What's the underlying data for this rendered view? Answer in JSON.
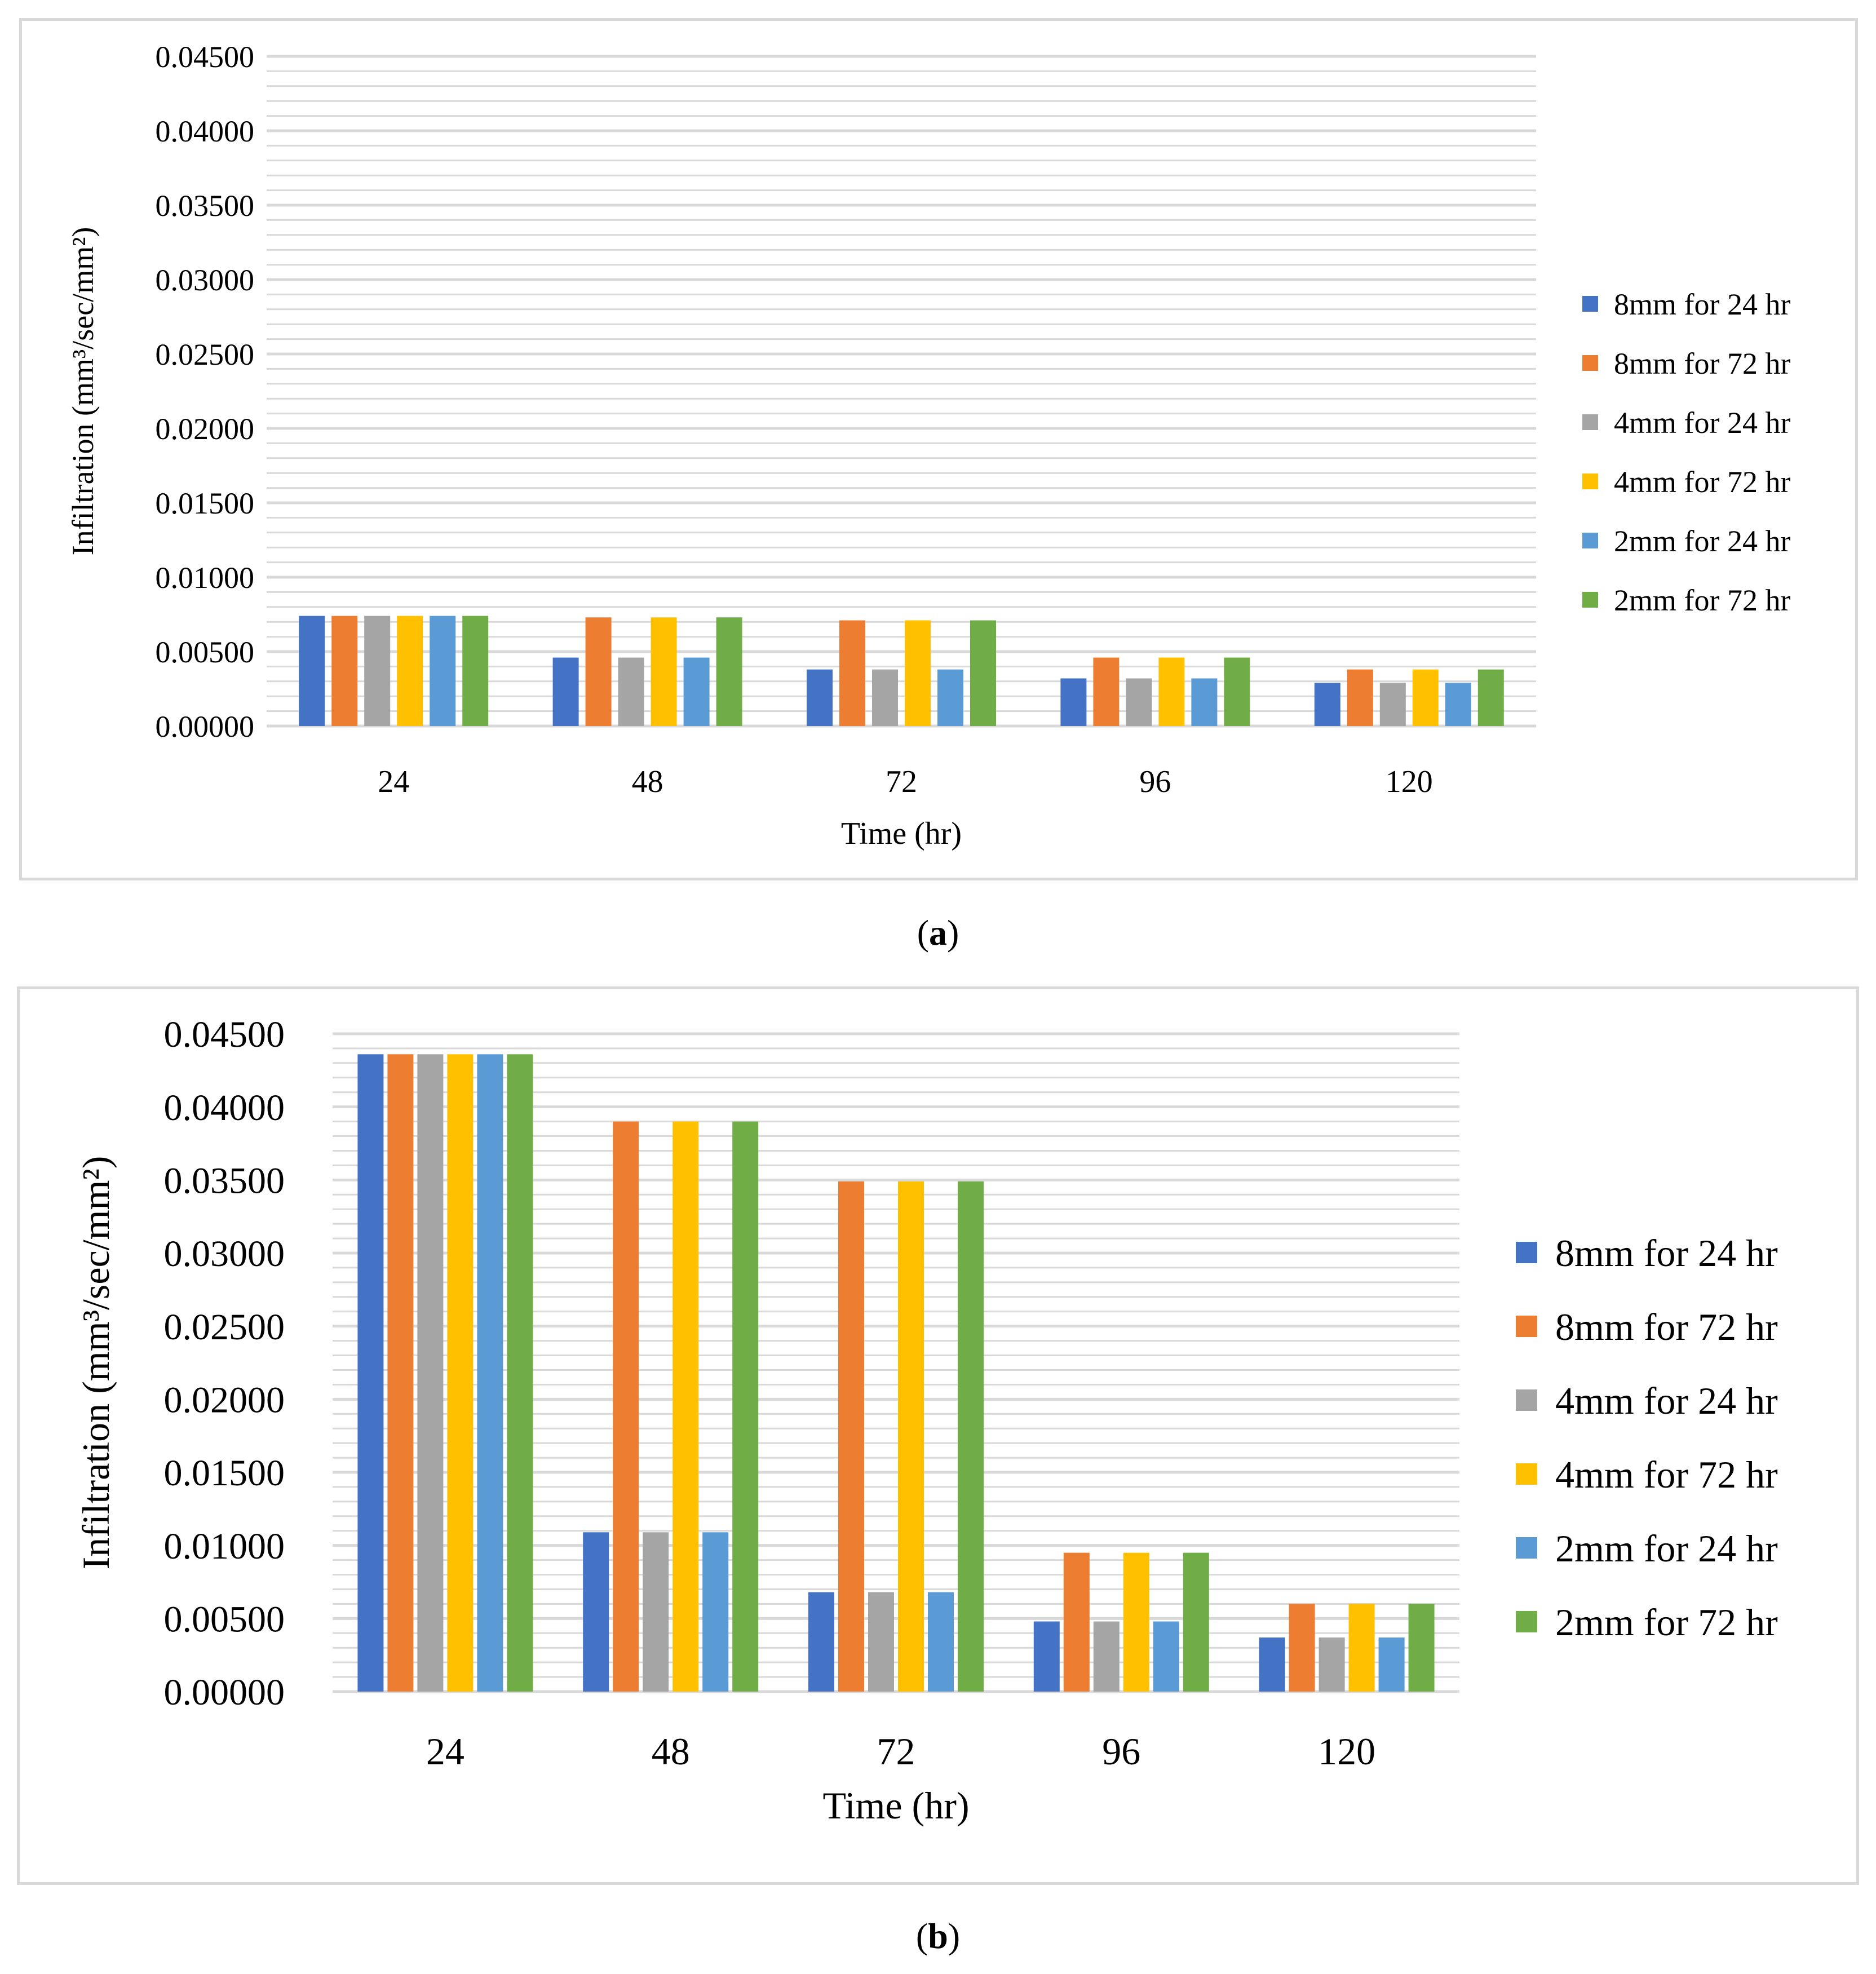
{
  "colors": {
    "background": "#ffffff",
    "panel_border": "#d9d9d9",
    "gridline": "#d9d9d9",
    "text": "#000000",
    "series": [
      "#4472c4",
      "#ed7d31",
      "#a5a5a5",
      "#ffc000",
      "#5b9bd5",
      "#70ad47"
    ]
  },
  "figure": {
    "caption_a_letter": "a",
    "caption_b_letter": "b",
    "caption_open": "(",
    "caption_close": ")"
  },
  "chart_data": [
    {
      "id": "a",
      "type": "bar",
      "xlabel": "Time (hr)",
      "ylabel": "Infiltration (mm³/sec/mm²)",
      "ylim": [
        0,
        0.045
      ],
      "y_ticks": [
        "0.00000",
        "0.00500",
        "0.01000",
        "0.01500",
        "0.02000",
        "0.02500",
        "0.03000",
        "0.03500",
        "0.04000",
        "0.04500"
      ],
      "y_tick_values": [
        0,
        0.005,
        0.01,
        0.015,
        0.02,
        0.025,
        0.03,
        0.035,
        0.04,
        0.045
      ],
      "minor_gridline_step": 0.001,
      "grid": true,
      "legend_position": "right",
      "categories": [
        "24",
        "48",
        "72",
        "96",
        "120"
      ],
      "series": [
        {
          "name": "8mm for 24 hr",
          "values": [
            0.0074,
            0.0046,
            0.0038,
            0.0032,
            0.0029
          ]
        },
        {
          "name": "8mm for 72 hr",
          "values": [
            0.0074,
            0.0073,
            0.0071,
            0.0046,
            0.0038
          ]
        },
        {
          "name": "4mm for 24 hr",
          "values": [
            0.0074,
            0.0046,
            0.0038,
            0.0032,
            0.0029
          ]
        },
        {
          "name": "4mm for 72 hr",
          "values": [
            0.0074,
            0.0073,
            0.0071,
            0.0046,
            0.0038
          ]
        },
        {
          "name": "2mm for 24 hr",
          "values": [
            0.0074,
            0.0046,
            0.0038,
            0.0032,
            0.0029
          ]
        },
        {
          "name": "2mm for 72 hr",
          "values": [
            0.0074,
            0.0073,
            0.0071,
            0.0046,
            0.0038
          ]
        }
      ]
    },
    {
      "id": "b",
      "type": "bar",
      "xlabel": "Time (hr)",
      "ylabel": "Infiltration (mm³/sec/mm²)",
      "ylim": [
        0,
        0.045
      ],
      "y_ticks": [
        "0.00000",
        "0.00500",
        "0.01000",
        "0.01500",
        "0.02000",
        "0.02500",
        "0.03000",
        "0.03500",
        "0.04000",
        "0.04500"
      ],
      "y_tick_values": [
        0,
        0.005,
        0.01,
        0.015,
        0.02,
        0.025,
        0.03,
        0.035,
        0.04,
        0.045
      ],
      "minor_gridline_step": 0.001,
      "grid": true,
      "legend_position": "right",
      "categories": [
        "24",
        "48",
        "72",
        "96",
        "120"
      ],
      "series": [
        {
          "name": "8mm for 24 hr",
          "values": [
            0.0436,
            0.0109,
            0.0068,
            0.0048,
            0.0037
          ]
        },
        {
          "name": "8mm for 72 hr",
          "values": [
            0.0436,
            0.039,
            0.0349,
            0.0095,
            0.006
          ]
        },
        {
          "name": "4mm for 24 hr",
          "values": [
            0.0436,
            0.0109,
            0.0068,
            0.0048,
            0.0037
          ]
        },
        {
          "name": "4mm for 72 hr",
          "values": [
            0.0436,
            0.039,
            0.0349,
            0.0095,
            0.006
          ]
        },
        {
          "name": "2mm for 24 hr",
          "values": [
            0.0436,
            0.0109,
            0.0068,
            0.0048,
            0.0037
          ]
        },
        {
          "name": "2mm for 72 hr",
          "values": [
            0.0436,
            0.039,
            0.0349,
            0.0095,
            0.006
          ]
        }
      ]
    }
  ]
}
